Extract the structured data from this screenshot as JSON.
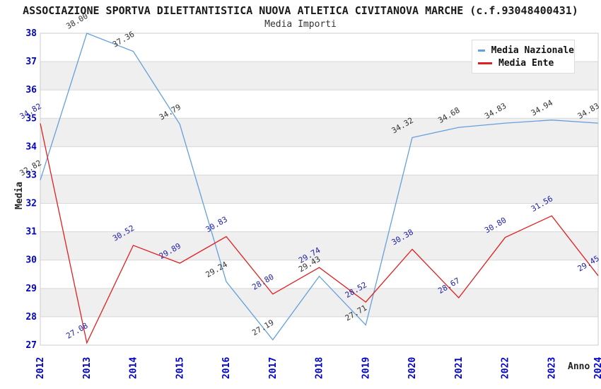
{
  "header": {
    "title": "ASSOCIAZIONE SPORTVA DILETTANTISTICA NUOVA ATLETICA CIVITANOVA MARCHE (c.f.93048400431)",
    "subtitle": "Media Importi"
  },
  "chart_data": {
    "type": "line",
    "x": [
      "2012",
      "2013",
      "2014",
      "2015",
      "2016",
      "2017",
      "2018",
      "2019",
      "2020",
      "2021",
      "2022",
      "2023",
      "2024"
    ],
    "series": [
      {
        "name": "Media Nazionale",
        "color": "#64A0DC",
        "label_color": "#333333",
        "values": [
          32.82,
          38.0,
          37.36,
          34.79,
          29.24,
          27.19,
          29.43,
          27.71,
          34.32,
          34.68,
          34.83,
          34.94,
          34.83
        ]
      },
      {
        "name": "Media Ente",
        "color": "#E02020",
        "label_color": "#2222AA",
        "values": [
          34.82,
          27.08,
          30.52,
          29.89,
          30.83,
          28.8,
          29.74,
          28.52,
          30.38,
          28.67,
          30.8,
          31.56,
          29.45
        ]
      }
    ],
    "xlabel": "Anno",
    "ylabel": "Media",
    "ylim": [
      27,
      38
    ],
    "y_ticks": [
      27,
      28,
      29,
      30,
      31,
      32,
      33,
      34,
      35,
      36,
      37,
      38
    ],
    "grid": true,
    "legend_position": "top-right",
    "point_labels_decimals": 2,
    "colors": {
      "tick_label": "#0000CC",
      "grid_line": "#D8D8D8",
      "band_fill": "#EFEFEF",
      "plot_border": "#CCCCCC"
    }
  }
}
